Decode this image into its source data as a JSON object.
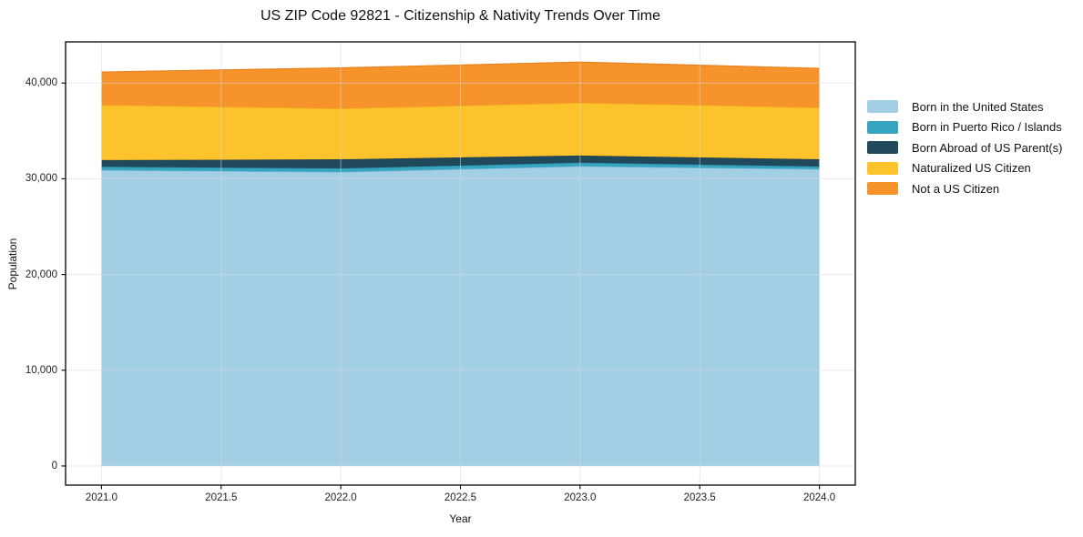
{
  "chart_data": {
    "type": "area",
    "stacked": true,
    "title": "US ZIP Code 92821 - Citizenship & Nativity Trends Over Time",
    "xlabel": "Year",
    "ylabel": "Population",
    "x": [
      2021,
      2022,
      2023,
      2024
    ],
    "series": [
      {
        "name": "Born in the United States",
        "color": "#a3cfe5",
        "edge_color": "#84bcd8",
        "values": [
          30900,
          30700,
          31300,
          31000
        ]
      },
      {
        "name": "Born in Puerto Rico / Islands",
        "color": "#38a5c0",
        "edge_color": "#2b93ad",
        "values": [
          350,
          380,
          380,
          280
        ]
      },
      {
        "name": "Born Abroad of US Parent(s)",
        "color": "#21495c",
        "edge_color": "#193d4e",
        "values": [
          700,
          950,
          750,
          750
        ]
      },
      {
        "name": "Naturalized US Citizen",
        "color": "#fcc32d",
        "edge_color": "#efb31b",
        "values": [
          5750,
          5300,
          5500,
          5400
        ]
      },
      {
        "name": "Not a US Citizen",
        "color": "#f7932b",
        "edge_color": "#e88420",
        "values": [
          3450,
          4250,
          4250,
          4100
        ]
      }
    ],
    "totals": [
      41150,
      41580,
      42180,
      41530
    ],
    "xlim": [
      2020.85,
      2024.15
    ],
    "ylim": [
      -2000,
      44300
    ],
    "x_ticks": [
      {
        "v": 2021.0,
        "label": "2021.0"
      },
      {
        "v": 2021.5,
        "label": "2021.5"
      },
      {
        "v": 2022.0,
        "label": "2022.0"
      },
      {
        "v": 2022.5,
        "label": "2022.5"
      },
      {
        "v": 2023.0,
        "label": "2023.0"
      },
      {
        "v": 2023.5,
        "label": "2023.5"
      },
      {
        "v": 2024.0,
        "label": "2024.0"
      }
    ],
    "y_ticks": [
      {
        "v": 0,
        "label": "0"
      },
      {
        "v": 10000,
        "label": "10,000"
      },
      {
        "v": 20000,
        "label": "20,000"
      },
      {
        "v": 30000,
        "label": "30,000"
      },
      {
        "v": 40000,
        "label": "40,000"
      }
    ],
    "grid": true,
    "grid_color": "#d9d9d9",
    "spine_color": "#000000",
    "legend_position": "right"
  }
}
